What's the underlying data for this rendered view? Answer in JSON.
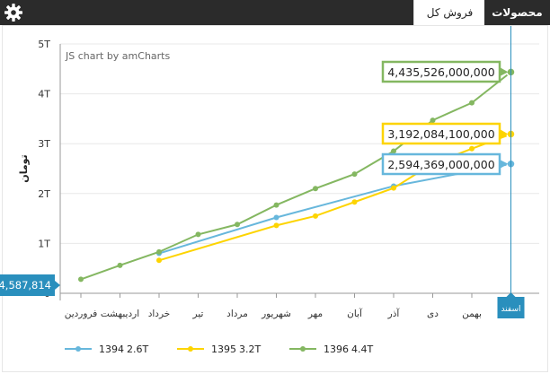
{
  "tabs": [
    {
      "label": "محصولات",
      "active": false
    },
    {
      "label": "فروش کل",
      "active": true
    }
  ],
  "chart_data": {
    "type": "line",
    "credit": "JS chart by amCharts",
    "ylabel": "تومان",
    "y_ticks": [
      "0",
      "1T",
      "2T",
      "3T",
      "4T",
      "5T"
    ],
    "ylim": [
      0,
      5000000000000
    ],
    "categories": [
      "فروردین",
      "اردیبهشت",
      "خرداد",
      "تیر",
      "مرداد",
      "شهریور",
      "مهر",
      "آبان",
      "آذر",
      "دی",
      "بهمن",
      "اسفند"
    ],
    "cursor_category": "اسفند",
    "cursor_value_label": "4,587,814",
    "series": [
      {
        "name": "1394",
        "legend_value": "2.6T",
        "color": "#67b7dc",
        "values": [
          null,
          null,
          800000000000,
          null,
          null,
          1520000000000,
          null,
          null,
          2150000000000,
          null,
          null,
          2594369000000
        ],
        "balloon": "2,594,369,000,000"
      },
      {
        "name": "1395",
        "legend_value": "3.2T",
        "color": "#fdd400",
        "values": [
          null,
          null,
          660000000000,
          null,
          null,
          1360000000000,
          1550000000000,
          1830000000000,
          2110000000000,
          2600000000000,
          2900000000000,
          3192084100000
        ],
        "balloon": "3,192,084,100,000"
      },
      {
        "name": "1396",
        "legend_value": "4.4T",
        "color": "#84b761",
        "values": [
          280000000000,
          560000000000,
          830000000000,
          1180000000000,
          1380000000000,
          1770000000000,
          2100000000000,
          2390000000000,
          2850000000000,
          3470000000000,
          3820000000000,
          4435526000000
        ],
        "balloon": "4,435,526,000,000"
      }
    ]
  }
}
